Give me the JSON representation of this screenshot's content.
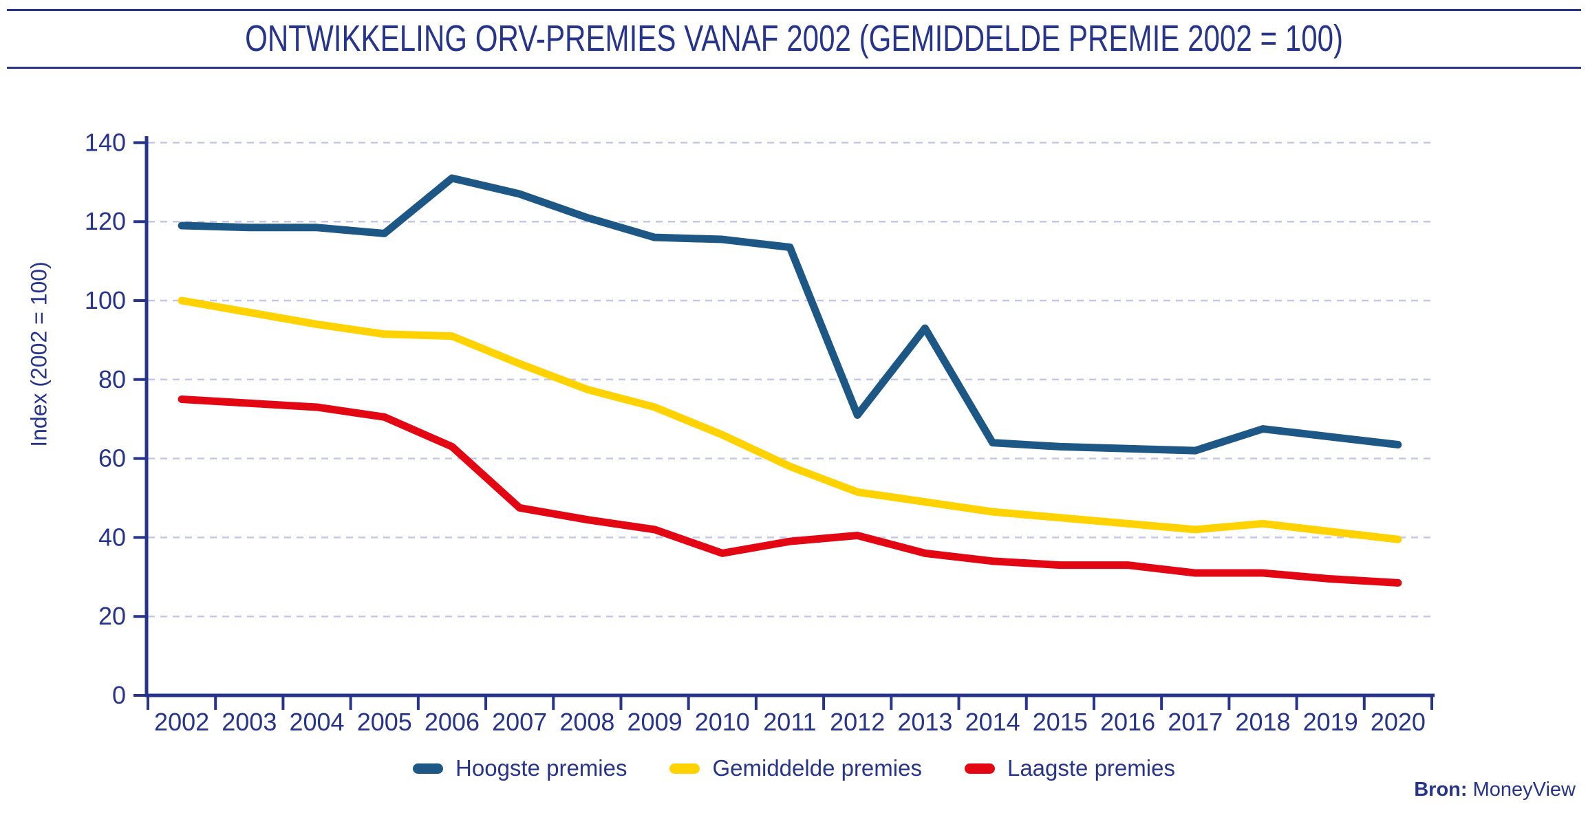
{
  "title": "ONTWIKKELING ORV-PREMIES VANAF 2002 (GEMIDDELDE PREMIE 2002 = 100)",
  "source": {
    "label": "Bron:",
    "value": "MoneyView"
  },
  "colors": {
    "navy": "#27348b",
    "blue": "#1d5786",
    "yellow": "#ffd200",
    "red": "#e30613",
    "grid": "#c3c6e8"
  },
  "legend": {
    "items": [
      {
        "label": "Hoogste premies",
        "color": "#1d5786"
      },
      {
        "label": "Gemiddelde premies",
        "color": "#ffd200"
      },
      {
        "label": "Laagste premies",
        "color": "#e30613"
      }
    ]
  },
  "chart_data": {
    "type": "line",
    "title": "ONTWIKKELING ORV-PREMIES VANAF 2002 (GEMIDDELDE PREMIE 2002 = 100)",
    "categories": [
      2002,
      2003,
      2004,
      2005,
      2006,
      2007,
      2008,
      2009,
      2010,
      2011,
      2012,
      2013,
      2014,
      2015,
      2016,
      2017,
      2018,
      2019,
      2020
    ],
    "series": [
      {
        "name": "Hoogste premies",
        "color": "#1d5786",
        "values": [
          119,
          118.5,
          118.5,
          117,
          131,
          127,
          121,
          116,
          115.5,
          113.5,
          71,
          93,
          64,
          63,
          62.5,
          62,
          67.5,
          65.5,
          63.5
        ]
      },
      {
        "name": "Gemiddelde premies",
        "color": "#ffd200",
        "values": [
          100,
          97,
          94,
          91.5,
          91,
          84,
          77.5,
          73,
          66,
          58,
          51.5,
          49,
          46.5,
          45,
          43.5,
          42,
          43.5,
          41.5,
          39.5
        ]
      },
      {
        "name": "Laagste premies",
        "color": "#e30613",
        "values": [
          75,
          74,
          73,
          70.5,
          63,
          47.5,
          44.5,
          42,
          36,
          39,
          40.5,
          36,
          34,
          33,
          33,
          31,
          31,
          29.5,
          28.5
        ]
      }
    ],
    "xlabel": "",
    "ylabel": "Index (2002 = 100)",
    "ylim": [
      0,
      140
    ],
    "yticks": [
      0,
      20,
      40,
      60,
      80,
      100,
      120,
      140
    ],
    "grid": "horizontal-dashed",
    "legend_position": "bottom",
    "source": "Bron: MoneyView"
  }
}
